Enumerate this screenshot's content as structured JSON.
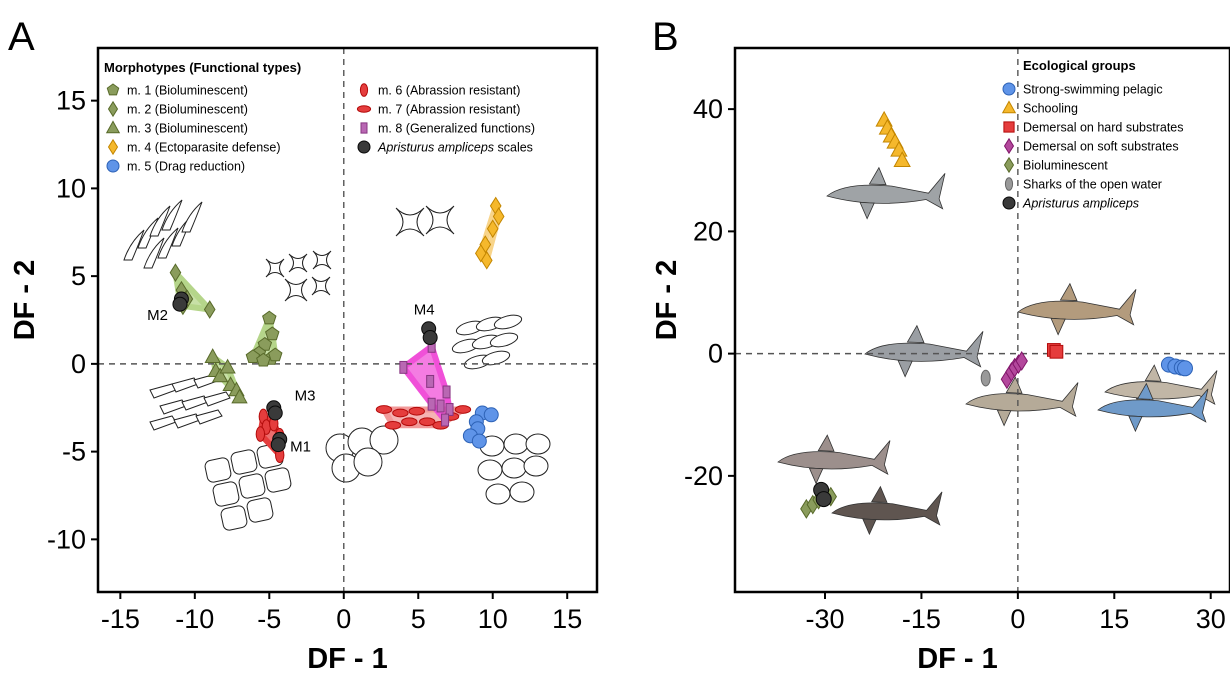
{
  "chart_data": [
    {
      "type": "scatter",
      "panel_label": "A",
      "xlabel": "DF - 1",
      "ylabel": "DF - 2",
      "xlim": [
        -16.5,
        17
      ],
      "ylim": [
        -13,
        18
      ],
      "xticks": [
        -15,
        -10,
        -5,
        0,
        5,
        10,
        15
      ],
      "yticks": [
        15,
        10,
        5,
        0,
        -5,
        -10
      ],
      "xtick_labels": [
        "-15",
        "-10",
        "-5",
        "0",
        "5",
        "10",
        "15"
      ],
      "ytick_labels": [
        "15",
        "10",
        "5",
        "0",
        "-5",
        "-10"
      ],
      "reference_lines": "dashed at x=0 and y=0",
      "legend_title": "Morphotypes (Functional types)",
      "legend_placement": "top",
      "series": [
        {
          "name": "m. 1 (Bioluminescent)",
          "marker": "pentagon",
          "color": "#8a9c5c",
          "hull": "#b5d58a",
          "points": [
            [
              -5.0,
              2.6
            ],
            [
              -4.8,
              1.7
            ],
            [
              -5.3,
              1.1
            ],
            [
              -5.7,
              0.6
            ],
            [
              -6.1,
              0.4
            ],
            [
              -4.9,
              0.3
            ],
            [
              -4.6,
              0.5
            ],
            [
              -5.4,
              0.2
            ]
          ]
        },
        {
          "name": "m. 2 (Bioluminescent)",
          "marker": "diamond",
          "color": "#8a9c5c",
          "hull": "#b5d58a",
          "points": [
            [
              -11.3,
              5.2
            ],
            [
              -10.9,
              4.2
            ],
            [
              -10.5,
              3.7
            ],
            [
              -10.8,
              3.3
            ],
            [
              -9.0,
              3.1
            ],
            [
              -11.0,
              3.6
            ]
          ]
        },
        {
          "name": "m. 3 (Bioluminescent)",
          "marker": "triangle",
          "color": "#8a9c5c",
          "hull": "#b5d58a",
          "points": [
            [
              -8.8,
              0.4
            ],
            [
              -8.6,
              -0.4
            ],
            [
              -8.3,
              -0.7
            ],
            [
              -7.8,
              -0.2
            ],
            [
              -7.6,
              -1.2
            ],
            [
              -7.2,
              -1.5
            ],
            [
              -7.0,
              -1.9
            ]
          ]
        },
        {
          "name": "m. 4 (Ectoparasite defense)",
          "marker": "diamond",
          "color": "#f5b82c",
          "hull": "#f8d48a",
          "points": [
            [
              10.2,
              9.0
            ],
            [
              10.4,
              8.4
            ],
            [
              10.0,
              7.7
            ],
            [
              9.5,
              6.8
            ],
            [
              9.2,
              6.3
            ],
            [
              9.6,
              5.9
            ]
          ]
        },
        {
          "name": "m. 5 (Drag reduction)",
          "marker": "circle",
          "color": "#5f94e8",
          "hull": null,
          "points": [
            [
              9.3,
              -2.8
            ],
            [
              9.9,
              -2.9
            ],
            [
              8.9,
              -3.3
            ],
            [
              9.0,
              -3.7
            ],
            [
              8.5,
              -4.1
            ],
            [
              9.1,
              -4.4
            ]
          ]
        },
        {
          "name": "m. 6 (Abrassion resistant)",
          "marker": "ellipse-v",
          "color": "#e53d3d",
          "hull": "#e53d3d",
          "points": [
            [
              -5.4,
              -3.0
            ],
            [
              -5.2,
              -3.6
            ],
            [
              -5.6,
              -4.0
            ],
            [
              -4.7,
              -3.4
            ],
            [
              -4.3,
              -4.1
            ],
            [
              -4.3,
              -5.2
            ]
          ]
        },
        {
          "name": "m. 7 (Abrassion resistant)",
          "marker": "ellipse-h",
          "color": "#e53d3d",
          "hull": "#f29a9a",
          "points": [
            [
              2.7,
              -2.6
            ],
            [
              3.8,
              -2.8
            ],
            [
              4.9,
              -2.7
            ],
            [
              5.6,
              -3.3
            ],
            [
              6.5,
              -3.5
            ],
            [
              7.2,
              -3.0
            ],
            [
              8.0,
              -2.6
            ],
            [
              3.3,
              -3.5
            ],
            [
              4.4,
              -3.3
            ]
          ]
        },
        {
          "name": "m. 8 (Generalized functions)",
          "marker": "rect",
          "color": "#b967b3",
          "hull": "#f050d8",
          "points": [
            [
              4.0,
              -0.2
            ],
            [
              5.8,
              -1.0
            ],
            [
              5.9,
              -2.3
            ],
            [
              6.5,
              -2.4
            ],
            [
              6.9,
              -1.6
            ],
            [
              7.1,
              -2.6
            ],
            [
              6.8,
              -3.2
            ],
            [
              5.9,
              1.0
            ]
          ]
        },
        {
          "name": "Apristurus ampliceps scales",
          "marker": "circle",
          "color": "#3a3a3a",
          "hull": null,
          "points": [
            [
              -10.9,
              3.7
            ],
            [
              -11.0,
              3.4
            ],
            [
              -4.7,
              -2.5
            ],
            [
              -4.6,
              -2.8
            ],
            [
              -4.3,
              -4.3
            ],
            [
              -4.4,
              -4.6
            ],
            [
              5.7,
              2.0
            ],
            [
              5.8,
              1.5
            ]
          ]
        }
      ],
      "annotations": [
        {
          "text": "M2",
          "x": -13.2,
          "y": 2.5
        },
        {
          "text": "M3",
          "x": -3.3,
          "y": -2.1
        },
        {
          "text": "M1",
          "x": -3.6,
          "y": -5.0
        },
        {
          "text": "M4",
          "x": 4.7,
          "y": 2.8
        }
      ]
    },
    {
      "type": "scatter",
      "panel_label": "B",
      "xlabel": "DF - 1",
      "ylabel": "DF - 2",
      "xlim": [
        -44,
        33
      ],
      "ylim": [
        -39,
        50
      ],
      "xticks": [
        -30,
        -15,
        0,
        15,
        30
      ],
      "yticks": [
        40,
        20,
        0,
        -20
      ],
      "xtick_labels": [
        "-30",
        "-15",
        "0",
        "15",
        "30"
      ],
      "ytick_labels": [
        "40",
        "20",
        "0",
        "-20"
      ],
      "reference_lines": "dashed at x=0 and y=0",
      "legend_title": "Ecological groups",
      "legend_placement": "top-right",
      "series": [
        {
          "name": "Strong-swimming pelagic",
          "marker": "circle",
          "color": "#5f94e8",
          "points": [
            [
              23.5,
              -1.8
            ],
            [
              24.5,
              -2.1
            ],
            [
              25.5,
              -2.3
            ],
            [
              26.0,
              -2.4
            ]
          ]
        },
        {
          "name": "Schooling",
          "marker": "triangle",
          "color": "#f5b82c",
          "points": [
            [
              -20.8,
              38.2
            ],
            [
              -20.3,
              36.9
            ],
            [
              -19.7,
              35.6
            ],
            [
              -19.1,
              34.6
            ],
            [
              -18.5,
              33.3
            ],
            [
              -18.0,
              31.6
            ]
          ]
        },
        {
          "name": "Demersal on hard substrates",
          "marker": "square",
          "color": "#e53d3d",
          "points": [
            [
              5.6,
              0.6
            ],
            [
              6.0,
              0.3
            ]
          ]
        },
        {
          "name": "Demersal on soft substrates",
          "marker": "diamond",
          "color": "#b3489c",
          "points": [
            [
              -1.7,
              -4.2
            ],
            [
              -1.0,
              -3.0
            ],
            [
              -0.5,
              -2.3
            ],
            [
              0.1,
              -1.7
            ],
            [
              0.6,
              -1.2
            ]
          ]
        },
        {
          "name": "Bioluminescent",
          "marker": "diamond",
          "color": "#8a9c5c",
          "points": [
            [
              -32.9,
              -25.4
            ],
            [
              -31.9,
              -24.7
            ],
            [
              -31.0,
              -23.9
            ],
            [
              -30.0,
              -23.4
            ],
            [
              -29.1,
              -23.4
            ]
          ]
        },
        {
          "name": "Sharks of the open water",
          "marker": "ellipse-v",
          "color": "#999999",
          "points": [
            [
              -5.0,
              -4.0
            ]
          ]
        },
        {
          "name": "Apristurus ampliceps",
          "marker": "circle",
          "color": "#3a3a3a",
          "points": [
            [
              -30.6,
              -22.3
            ],
            [
              -30.2,
              -23.8
            ]
          ]
        }
      ]
    }
  ]
}
